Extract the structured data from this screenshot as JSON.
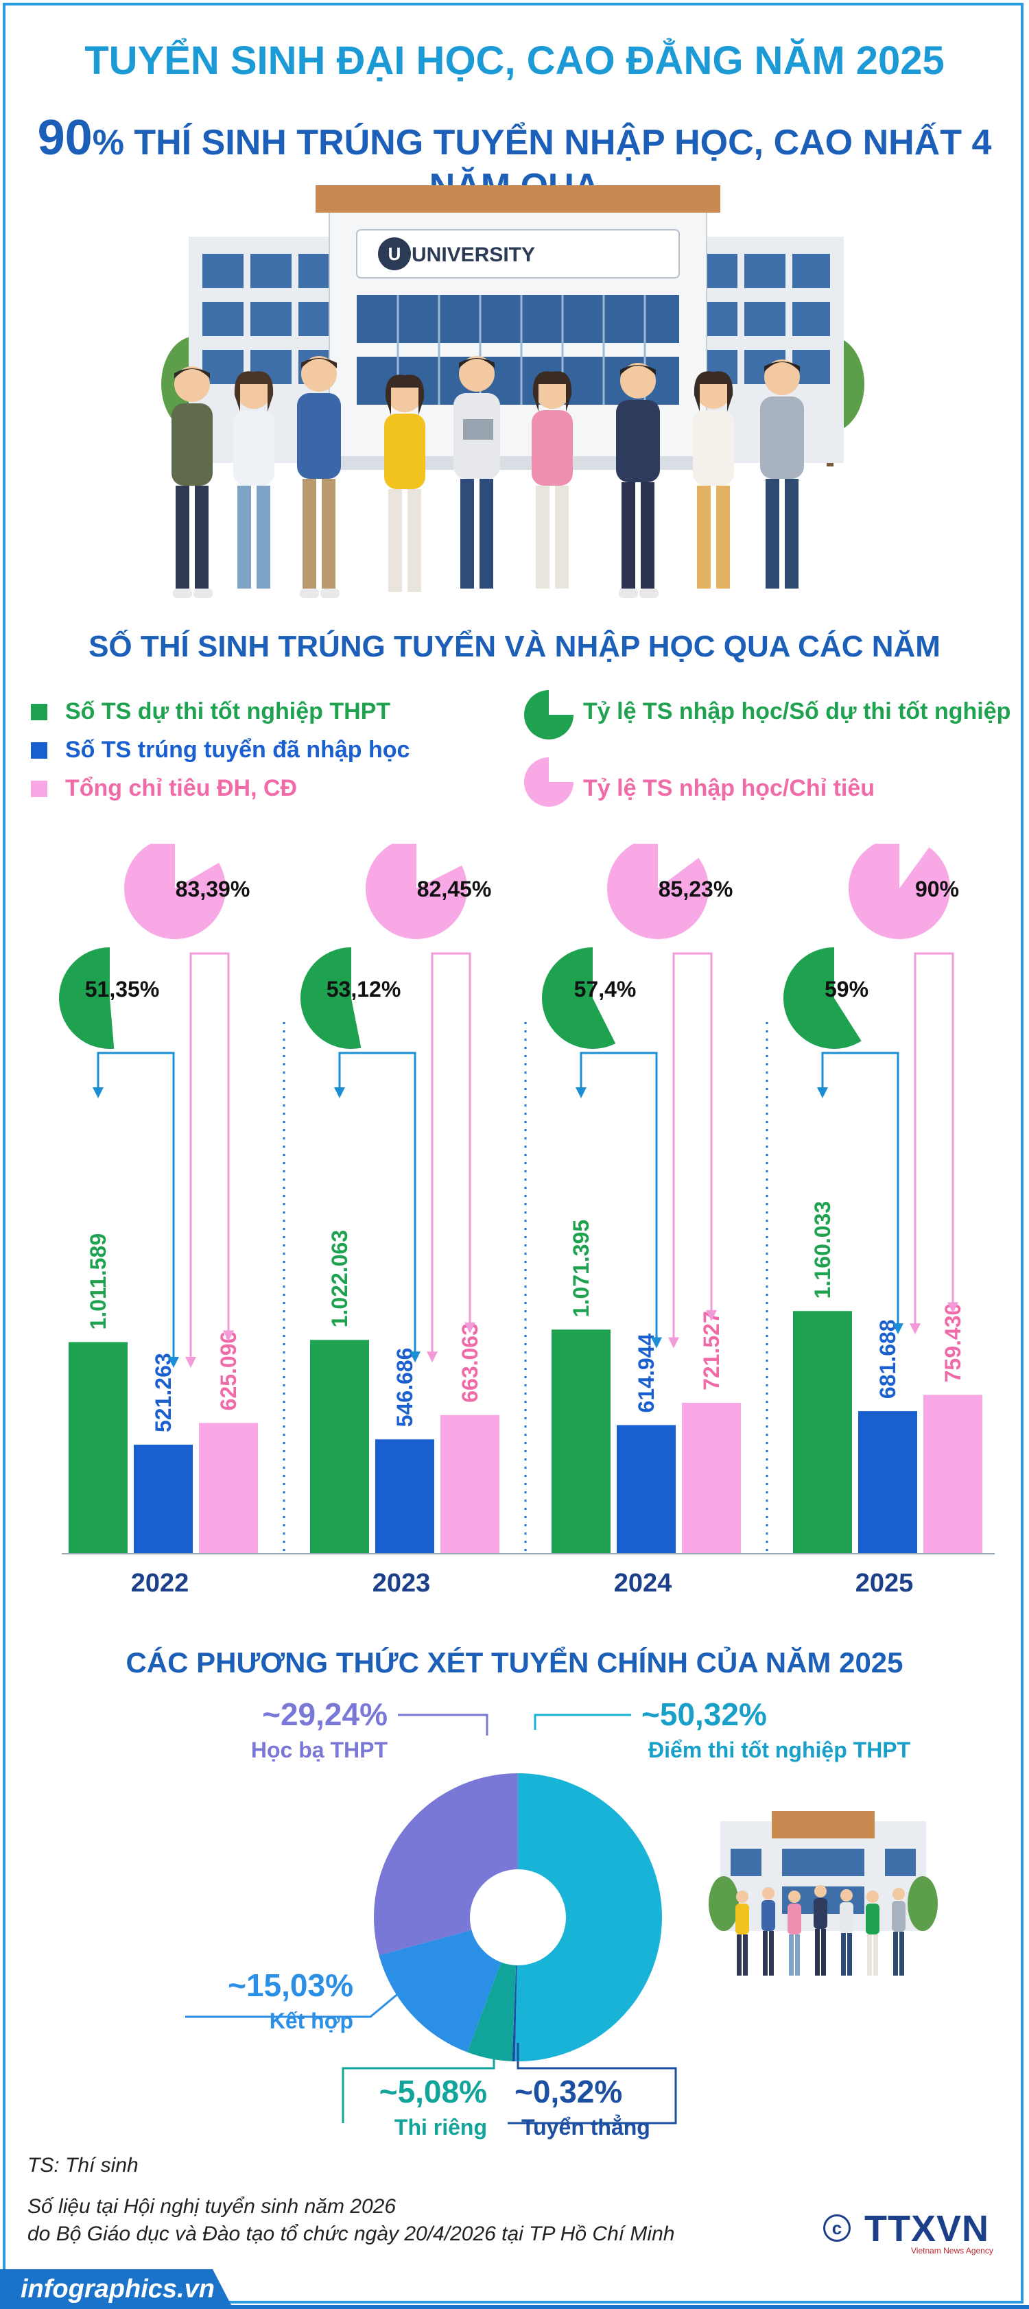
{
  "header": {
    "title": "TUYỂN SINH ĐẠI HỌC, CAO ĐẲNG NĂM 2025",
    "subtitle_number": "90",
    "subtitle_rest": "% THÍ SINH TRÚNG TUYỂN NHẬP HỌC, CAO NHẤT 4 NĂM QUA",
    "building_sign": "UNIVERSITY"
  },
  "section1": {
    "title": "SỐ THÍ SINH TRÚNG TUYỂN VÀ NHẬP HỌC QUA CÁC NĂM",
    "legend": [
      {
        "label": "Số TS dự thi tốt nghiệp THPT",
        "color": "#1fa24f"
      },
      {
        "label": "Số TS trúng tuyển đã nhập học",
        "color": "#1a5fd0"
      },
      {
        "label": "Tổng chỉ tiêu ĐH, CĐ",
        "color": "#f9a8e6"
      },
      {
        "label": "Tỷ lệ TS nhập học/Số dự thi tốt nghiệp",
        "color": "#1fa24f"
      },
      {
        "label": "Tỷ lệ TS nhập học/Chỉ tiêu",
        "color": "#f9a8e6"
      }
    ]
  },
  "chart_data": [
    {
      "type": "bar",
      "title": "SỐ THÍ SINH TRÚNG TUYỂN VÀ NHẬP HỌC QUA CÁC NĂM",
      "categories": [
        "2022",
        "2023",
        "2024",
        "2025"
      ],
      "series": [
        {
          "name": "Số TS dự thi tốt nghiệp THPT",
          "values": [
            1011589,
            1022063,
            1071395,
            1160033
          ],
          "labels": [
            "1.011.589",
            "1.022.063",
            "1.071.395",
            "1.160.033"
          ],
          "color": "#1fa24f"
        },
        {
          "name": "Số TS trúng tuyển đã nhập học",
          "values": [
            521263,
            546686,
            614944,
            681688
          ],
          "labels": [
            "521.263",
            "546.686",
            "614.944",
            "681.688"
          ],
          "color": "#1a5fd0"
        },
        {
          "name": "Tổng chỉ tiêu ĐH, CĐ",
          "values": [
            625096,
            663063,
            721527,
            759430
          ],
          "labels": [
            "625.096",
            "663.063",
            "721.527",
            "759.430"
          ],
          "color": "#f9a8e6"
        }
      ],
      "ratios": [
        {
          "name": "Tỷ lệ TS nhập học/Số dự thi tốt nghiệp",
          "values": [
            51.35,
            53.12,
            57.4,
            59
          ],
          "labels": [
            "51,35%",
            "53,12%",
            "57,4%",
            "59%"
          ],
          "color": "#1fa24f"
        },
        {
          "name": "Tỷ lệ TS nhập học/Chỉ tiêu",
          "values": [
            83.39,
            82.45,
            85.23,
            90
          ],
          "labels": [
            "83,39%",
            "82,45%",
            "85,23%",
            "90%"
          ],
          "color": "#f9a8e6"
        }
      ]
    },
    {
      "type": "pie",
      "title": "CÁC PHƯƠNG THỨC XÉT TUYỂN CHÍNH CỦA NĂM 2025",
      "slices": [
        {
          "name": "Điểm thi tốt nghiệp THPT",
          "value": 50.32,
          "label": "~50,32%",
          "color": "#19b3d8"
        },
        {
          "name": "Tuyển thẳng",
          "value": 0.32,
          "label": "~0,32%",
          "color": "#1c4fa0"
        },
        {
          "name": "Thi riêng",
          "value": 5.08,
          "label": "~5,08%",
          "color": "#10a49b"
        },
        {
          "name": "Kết hợp",
          "value": 15.03,
          "label": "~15,03%",
          "color": "#2b8fe6"
        },
        {
          "name": "Học bạ THPT",
          "value": 29.24,
          "label": "~29,24%",
          "color": "#7a78d6"
        }
      ]
    }
  ],
  "section2": {
    "title": "CÁC PHƯƠNG THỨC XÉT TUYỂN CHÍNH CỦA NĂM 2025"
  },
  "footer": {
    "note": "TS: Thí sinh",
    "source_line1": "Số liệu tại Hội nghị tuyển sinh năm 2026",
    "source_line2": "do Bộ Giáo dục và Đào tạo tổ chức ngày 20/4/2026 tại TP Hồ Chí Minh",
    "brand": "infographics.vn",
    "agency": "TTXVN",
    "agency_sub": "Vietnam News Agency"
  }
}
